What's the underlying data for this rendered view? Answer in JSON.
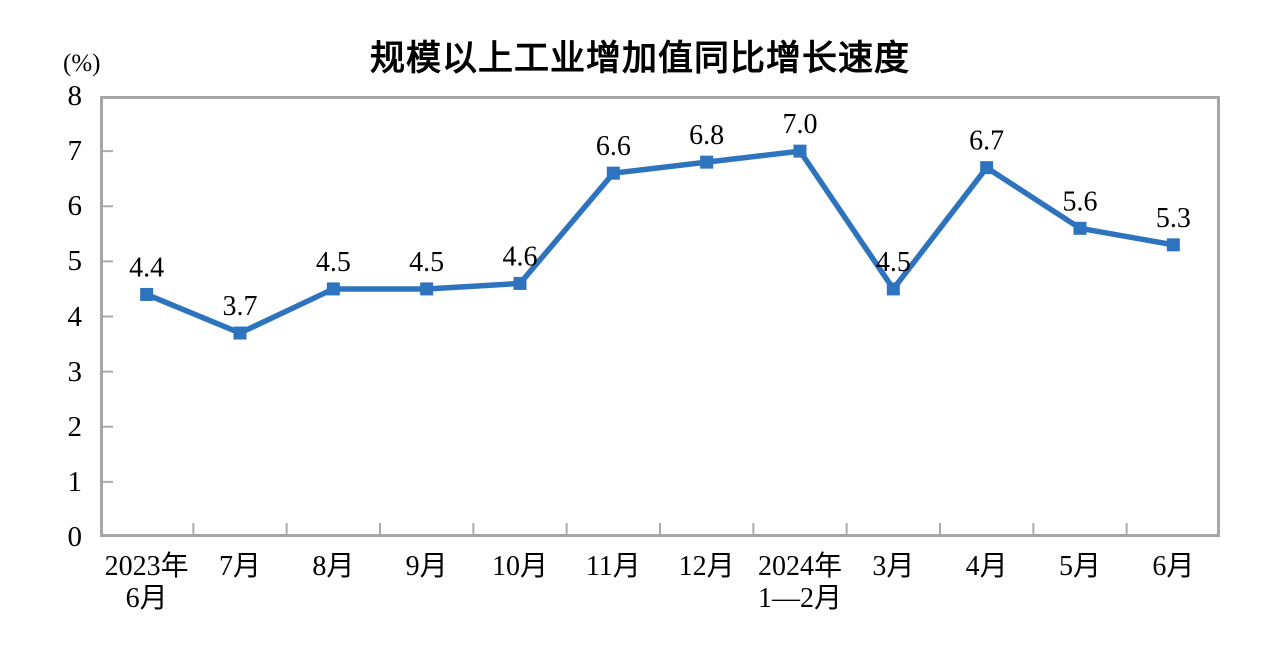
{
  "header": {
    "title": "规模以上工业增加值同比增长速度",
    "unit_label": "(%)"
  },
  "chart_data": {
    "type": "line",
    "title": "规模以上工业增加值同比增长速度",
    "xlabel": "",
    "ylabel": "(%)",
    "categories": [
      "2023年\n6月",
      "7月",
      "8月",
      "9月",
      "10月",
      "11月",
      "12月",
      "2024年\n1—2月",
      "3月",
      "4月",
      "5月",
      "6月"
    ],
    "values": [
      4.4,
      3.7,
      4.5,
      4.5,
      4.6,
      6.6,
      6.8,
      7.0,
      4.5,
      6.7,
      5.6,
      5.3
    ],
    "value_labels": [
      "4.4",
      "3.7",
      "4.5",
      "4.5",
      "4.6",
      "6.6",
      "6.8",
      "7.0",
      "4.5",
      "6.7",
      "5.6",
      "5.3"
    ],
    "ylim": [
      0,
      8
    ],
    "yticks": [
      0,
      1,
      2,
      3,
      4,
      5,
      6,
      7,
      8
    ],
    "grid": false,
    "legend": "none",
    "marker": "square",
    "colors": {
      "line": "#2E73BE",
      "plot_border": "#A6A6A6",
      "axis_tick": "#ABABAB",
      "text": "#000000"
    }
  }
}
